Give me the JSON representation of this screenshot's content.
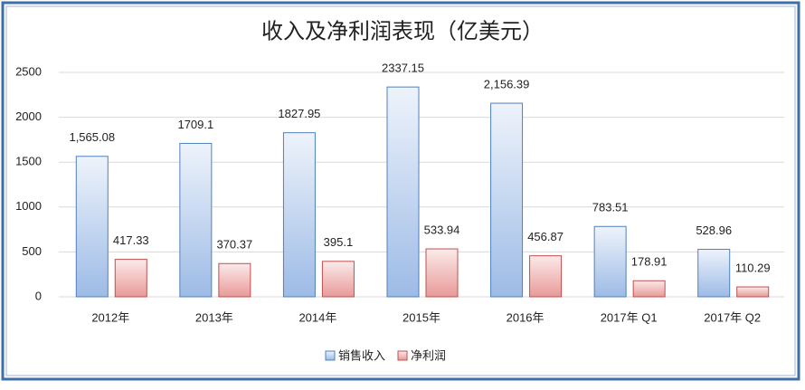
{
  "chart_data": {
    "type": "bar",
    "title": "收入及净利润表现（亿美元）",
    "categories": [
      "2012年",
      "2013年",
      "2014年",
      "2015年",
      "2016年",
      "2017年 Q1",
      "2017年 Q2"
    ],
    "series": [
      {
        "name": "销售收入",
        "color": "#4f81bd",
        "values": [
          1565.08,
          1709.1,
          1827.95,
          2337.15,
          2156.39,
          783.51,
          528.96
        ],
        "value_labels": [
          "1,565.08",
          "1709.1",
          "1827.95",
          "2337.15",
          "2,156.39",
          "783.51",
          "528.96"
        ]
      },
      {
        "name": "净利润",
        "color": "#c0504d",
        "values": [
          417.33,
          370.37,
          395.1,
          533.94,
          456.87,
          178.91,
          110.29
        ],
        "value_labels": [
          "417.33",
          "370.37",
          "395.1",
          "533.94",
          "456.87",
          "178.91",
          "110.29"
        ]
      }
    ],
    "ylim": [
      0,
      2500
    ],
    "yticks": [
      0,
      500,
      1000,
      1500,
      2000,
      2500
    ],
    "grid": true,
    "legend": "bottom"
  }
}
